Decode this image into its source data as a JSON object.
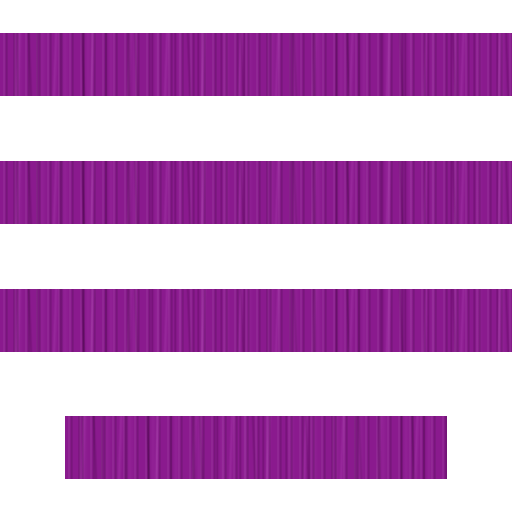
{
  "icon": {
    "name": "justify-center-align-icon",
    "line_count": 4,
    "colors": {
      "bar": "#8a1a8e",
      "background": "#ffffff"
    },
    "texture": "purple-wood-grain"
  }
}
